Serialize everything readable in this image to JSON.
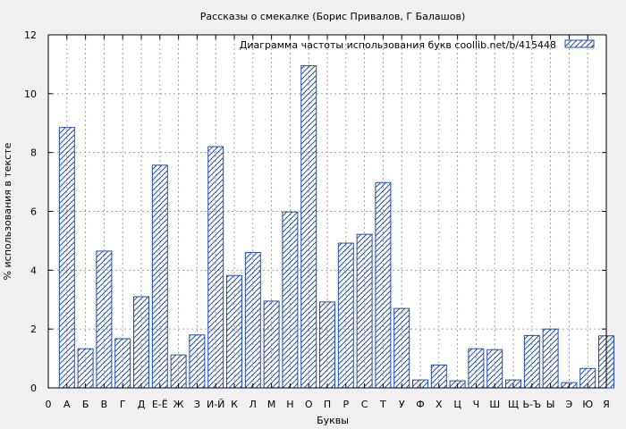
{
  "chart_data": {
    "type": "bar",
    "title": "Рассказы о смекалке (Борис Привалов, Г Балашов)",
    "xlabel": "Буквы",
    "ylabel": "% использования в тексте",
    "ylim": [
      0,
      12
    ],
    "yticks": [
      0,
      2,
      4,
      6,
      8,
      10,
      12
    ],
    "grid": true,
    "legend": {
      "label": "Диаграмма частоты использования букв  coollib.net/b/415448",
      "placement": "top-right"
    },
    "x_tick_labels": [
      "0",
      "А",
      "Б",
      "В",
      "Г",
      "Д",
      "Е-Ё",
      "Ж",
      "З",
      "И-Й",
      "К",
      "Л",
      "М",
      "Н",
      "О",
      "П",
      "Р",
      "С",
      "Т",
      "У",
      "Ф",
      "Х",
      "Ц",
      "Ч",
      "Ш",
      "Щ",
      "Ь-Ъ",
      "Ы",
      "Э",
      "Ю",
      "Я"
    ],
    "categories": [
      "А",
      "Б",
      "В",
      "Г",
      "Д",
      "Е-Ё",
      "Ж",
      "З",
      "И-Й",
      "К",
      "Л",
      "М",
      "Н",
      "О",
      "П",
      "Р",
      "С",
      "Т",
      "У",
      "Ф",
      "Х",
      "Ц",
      "Ч",
      "Ш",
      "Щ",
      "Ь-Ъ",
      "Ы",
      "Э",
      "Ю",
      "Я"
    ],
    "values": [
      8.85,
      1.33,
      4.65,
      1.67,
      3.1,
      7.57,
      1.12,
      1.8,
      8.2,
      3.82,
      4.6,
      2.95,
      5.98,
      10.95,
      2.92,
      4.92,
      5.22,
      6.98,
      2.7,
      0.27,
      0.78,
      0.24,
      1.33,
      1.3,
      0.27,
      1.78,
      2.0,
      0.18,
      0.66,
      1.77
    ]
  }
}
